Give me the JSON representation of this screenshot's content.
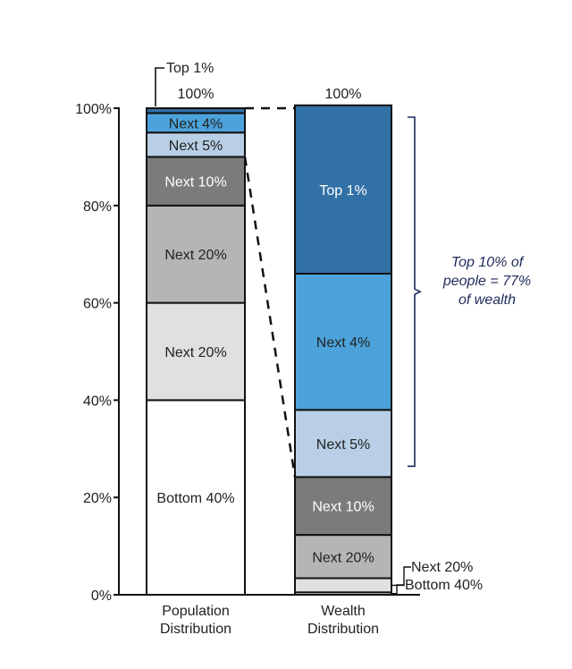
{
  "chart_data": {
    "type": "bar",
    "stacked": true,
    "categories": [
      "Population Distribution",
      "Wealth Distribution"
    ],
    "category_lines": [
      [
        "Population",
        "Distribution"
      ],
      [
        "Wealth",
        "Distribution"
      ]
    ],
    "totals": [
      "100%",
      "100%"
    ],
    "ylim": [
      0,
      100
    ],
    "yticks": [
      0,
      20,
      40,
      60,
      80,
      100
    ],
    "ytick_labels": [
      "0%",
      "20%",
      "40%",
      "60%",
      "80%",
      "100%"
    ],
    "series": [
      {
        "name": "Bottom 40%",
        "color": "#ffffff",
        "text_color": "#222222",
        "values": [
          40,
          0.5
        ]
      },
      {
        "name": "Next 20%",
        "color": "#e0e0e0",
        "text_color": "#222222",
        "values": [
          20,
          2.9
        ]
      },
      {
        "name": "Next 20%",
        "color": "#b5b5b5",
        "text_color": "#222222",
        "values": [
          20,
          8.9
        ]
      },
      {
        "name": "Next 10%",
        "color": "#7b7b7b",
        "text_color": "#ffffff",
        "values": [
          10,
          11.9
        ]
      },
      {
        "name": "Next 5%",
        "color": "#b8cfe6",
        "text_color": "#222222",
        "values": [
          5,
          13.8
        ]
      },
      {
        "name": "Next 4%",
        "color": "#4ca3db",
        "text_color": "#222222",
        "values": [
          4,
          28.0
        ]
      },
      {
        "name": "Top 1%",
        "color": "#3171a6",
        "text_color": "#ffffff",
        "values": [
          1,
          34.6
        ]
      }
    ],
    "annotations": {
      "top1_population_callout": "Top 1%",
      "wealth_small_labels": [
        "Next 20%",
        "Bottom 40%"
      ],
      "bracket_text": [
        "Top 10% of",
        "people = 77%",
        "of wealth"
      ],
      "bracket_color": "#1f2a5a"
    }
  }
}
